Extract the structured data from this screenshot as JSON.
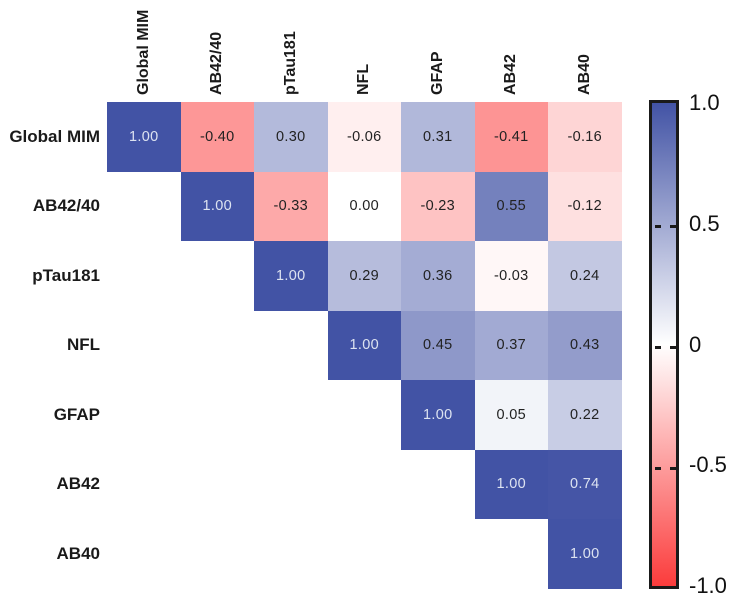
{
  "chart_data": {
    "type": "heatmap",
    "title": "",
    "description": "Upper-triangular correlation matrix heatmap with diverging blue-white-red colormap and vertical colorbar legend on the right",
    "labels": [
      "Global MIM",
      "AB42/40",
      "pTau181",
      "NFL",
      "GFAP",
      "AB42",
      "AB40"
    ],
    "matrix": [
      [
        1.0,
        -0.4,
        0.3,
        -0.06,
        0.31,
        -0.41,
        -0.16
      ],
      [
        null,
        1.0,
        -0.33,
        0.0,
        -0.23,
        0.55,
        -0.12
      ],
      [
        null,
        null,
        1.0,
        0.29,
        0.36,
        -0.03,
        0.24
      ],
      [
        null,
        null,
        null,
        1.0,
        0.45,
        0.37,
        0.43
      ],
      [
        null,
        null,
        null,
        null,
        1.0,
        0.05,
        0.22
      ],
      [
        null,
        null,
        null,
        null,
        null,
        1.0,
        0.74
      ],
      [
        null,
        null,
        null,
        null,
        null,
        null,
        1.0
      ]
    ],
    "value_format_decimals": 2,
    "colorbar": {
      "min": -1,
      "max": 1,
      "ticks": [
        {
          "label": "1.0",
          "value": 1
        },
        {
          "label": "0.5",
          "value": 0.5
        },
        {
          "label": "0",
          "value": 0
        },
        {
          "label": "-0.5",
          "value": -0.5
        },
        {
          "label": "-1.0",
          "value": -1
        }
      ],
      "position": "right"
    },
    "colors": {
      "positive_end": "#4253a5",
      "negative_end": "#fb3c3c",
      "neutral": "#ffffff",
      "cell_text_dark": "#222222",
      "cell_text_light": "#dde3f1",
      "label_text": "#1a1a1a",
      "colorbar_border": "#1a1a1a"
    },
    "color_scale_clamp": 0.75,
    "light_text_threshold": 0.7,
    "grid": false
  }
}
